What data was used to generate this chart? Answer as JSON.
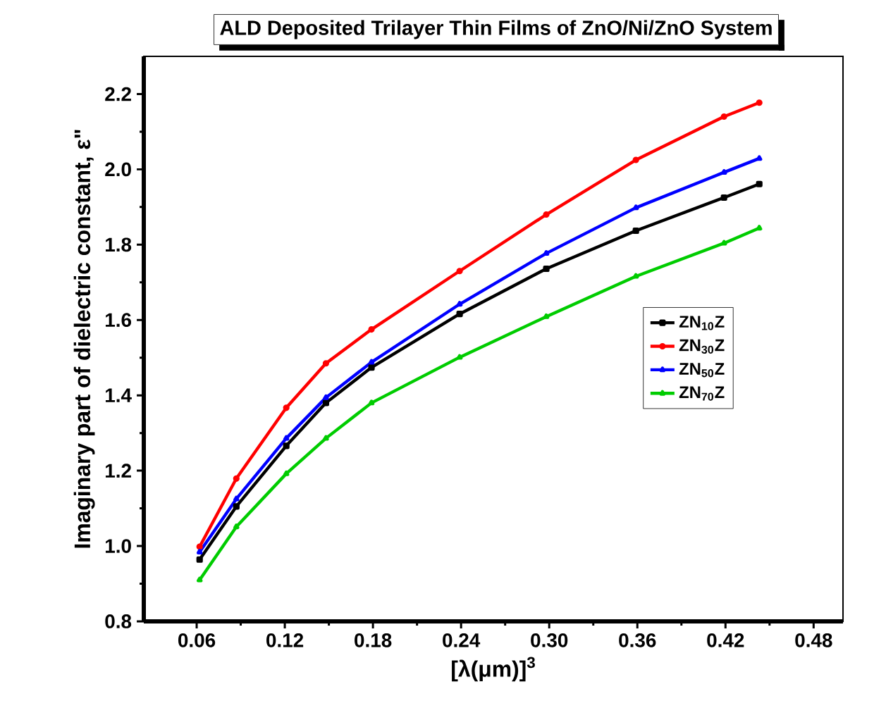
{
  "chart_data": {
    "type": "line",
    "title": "ALD Deposited Trilayer Thin Films of ZnO/Ni/ZnO System",
    "xlabel": "[λ(μm)]$^{3}$",
    "ylabel": "Imaginary part of dielectric constant, ε\"",
    "xlim": [
      0.024,
      0.5
    ],
    "ylim": [
      0.8,
      2.3
    ],
    "xticks": [
      {
        "value": 0.06,
        "label": "0.06"
      },
      {
        "value": 0.12,
        "label": "0.12"
      },
      {
        "value": 0.18,
        "label": "0.18"
      },
      {
        "value": 0.24,
        "label": "0.24"
      },
      {
        "value": 0.3,
        "label": "0.30"
      },
      {
        "value": 0.36,
        "label": "0.36"
      },
      {
        "value": 0.42,
        "label": "0.42"
      },
      {
        "value": 0.48,
        "label": "0.48"
      }
    ],
    "yticks": [
      {
        "value": 0.8,
        "label": "0.8"
      },
      {
        "value": 1.0,
        "label": "1.0"
      },
      {
        "value": 1.2,
        "label": "1.2"
      },
      {
        "value": 1.4,
        "label": "1.4"
      },
      {
        "value": 1.6,
        "label": "1.6"
      },
      {
        "value": 1.8,
        "label": "1.8"
      },
      {
        "value": 2.0,
        "label": "2.0"
      },
      {
        "value": 2.2,
        "label": "2.2"
      }
    ],
    "x": [
      0.062,
      0.087,
      0.121,
      0.148,
      0.179,
      0.239,
      0.298,
      0.359,
      0.419,
      0.443
    ],
    "legend": "right",
    "grid": false,
    "series": [
      {
        "name": "ZN$_{10}$Z",
        "color": "#000000",
        "marker": "square",
        "values": [
          0.964,
          1.105,
          1.266,
          1.38,
          1.474,
          1.616,
          1.736,
          1.837,
          1.925,
          1.961
        ]
      },
      {
        "name": "ZN$_{30}$Z",
        "color": "#ff0000",
        "marker": "circle",
        "values": [
          0.998,
          1.179,
          1.367,
          1.485,
          1.575,
          1.73,
          1.88,
          2.025,
          2.14,
          2.177
        ]
      },
      {
        "name": "ZN$_{50}$Z",
        "color": "#0000ff",
        "marker": "triangle",
        "values": [
          0.984,
          1.125,
          1.286,
          1.394,
          1.488,
          1.642,
          1.777,
          1.898,
          1.992,
          2.029
        ]
      },
      {
        "name": "ZN$_{70}$Z",
        "color": "#00cc00",
        "marker": "triangle",
        "values": [
          0.91,
          1.051,
          1.192,
          1.286,
          1.38,
          1.501,
          1.609,
          1.716,
          1.804,
          1.844
        ]
      }
    ]
  }
}
